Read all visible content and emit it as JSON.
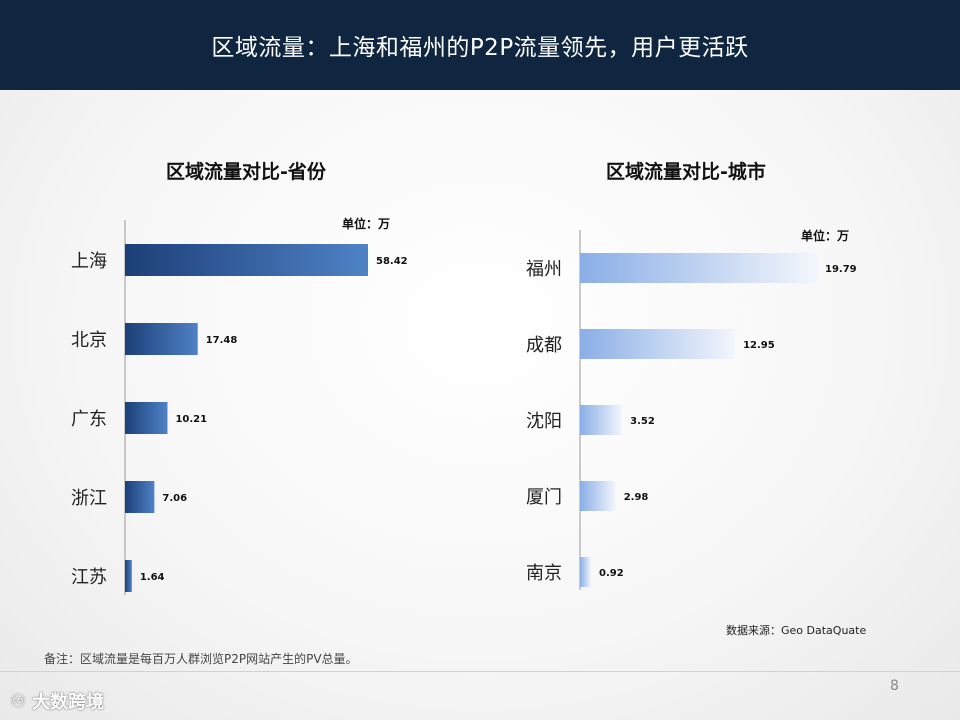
{
  "header": {
    "title": "区域流量：上海和福州的P2P流量领先，用户更活跃"
  },
  "chart_data": [
    {
      "type": "bar",
      "orientation": "horizontal",
      "title": "区域流量对比-省份",
      "unit_label": "单位：万",
      "categories": [
        "上海",
        "北京",
        "广东",
        "浙江",
        "江苏"
      ],
      "values": [
        58.42,
        17.48,
        10.21,
        7.06,
        1.64
      ],
      "value_labels": [
        "58.42",
        "17.48",
        "10.21",
        "7.06",
        "1.64"
      ],
      "colors": {
        "bar_start": "#1c3f78",
        "bar_end": "#4f82c6"
      }
    },
    {
      "type": "bar",
      "orientation": "horizontal",
      "title": "区域流量对比-城市",
      "unit_label": "单位：万",
      "categories": [
        "福州",
        "成都",
        "沈阳",
        "厦门",
        "南京"
      ],
      "values": [
        19.79,
        12.95,
        3.52,
        2.98,
        0.92
      ],
      "value_labels": [
        "19.79",
        "12.95",
        "3.52",
        "2.98",
        "0.92"
      ],
      "colors": {
        "bar_start": "#8aaee6",
        "bar_end": "#f3f6fc"
      }
    }
  ],
  "source": "数据来源：Geo  DataQuate",
  "note": "备注：区域流量是每百万人群浏览P2P网站产生的PV总量。",
  "page_number": "8",
  "watermark": {
    "text": "大数跨境",
    "icon": "1000-logo-icon"
  }
}
